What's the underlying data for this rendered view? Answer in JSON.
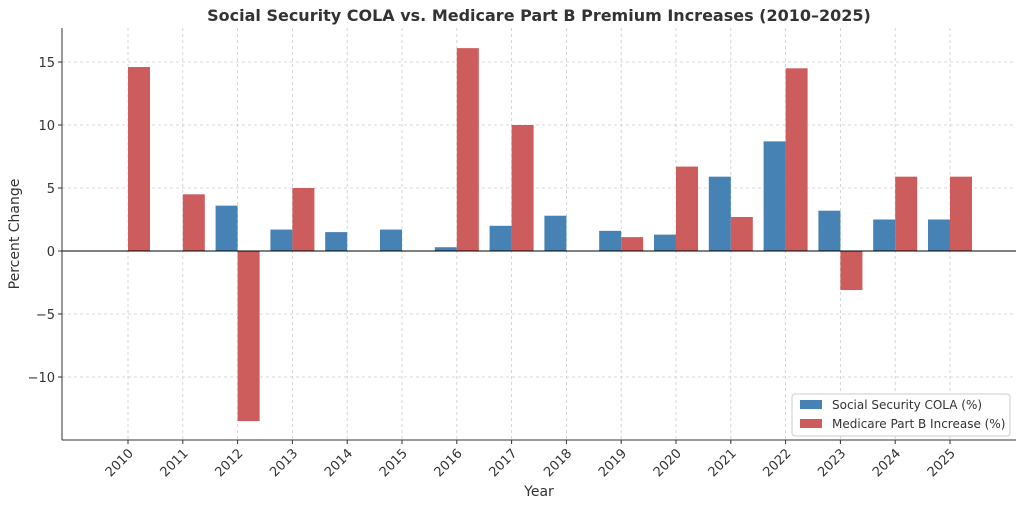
{
  "chart_data": {
    "type": "bar",
    "title": "Social Security COLA vs. Medicare Part B Premium Increases (2010–2025)",
    "xlabel": "Year",
    "ylabel": "Percent Change",
    "categories": [
      "2010",
      "2011",
      "2012",
      "2013",
      "2014",
      "2015",
      "2016",
      "2017",
      "2018",
      "2019",
      "2020",
      "2021",
      "2022",
      "2023",
      "2024",
      "2025"
    ],
    "series": [
      {
        "name": "Social Security COLA (%)",
        "color": "#4682b4",
        "values": [
          0,
          0,
          3.6,
          1.7,
          1.5,
          1.7,
          0.3,
          2.0,
          2.8,
          1.6,
          1.3,
          5.9,
          8.7,
          3.2,
          2.5,
          2.5
        ]
      },
      {
        "name": "Medicare Part B Increase (%)",
        "color": "#cd5c5c",
        "values": [
          14.6,
          4.5,
          -13.5,
          5.0,
          0,
          0,
          16.1,
          10.0,
          0,
          1.1,
          6.7,
          2.7,
          14.5,
          -3.1,
          5.9,
          5.9
        ]
      }
    ],
    "yticks": [
      -10,
      -5,
      0,
      5,
      10,
      15
    ],
    "ytick_labels": [
      "−10",
      "−5",
      "0",
      "5",
      "10",
      "15"
    ],
    "ylim": [
      -15,
      17.7
    ],
    "grid": true,
    "legend_position": "bottom-right"
  }
}
